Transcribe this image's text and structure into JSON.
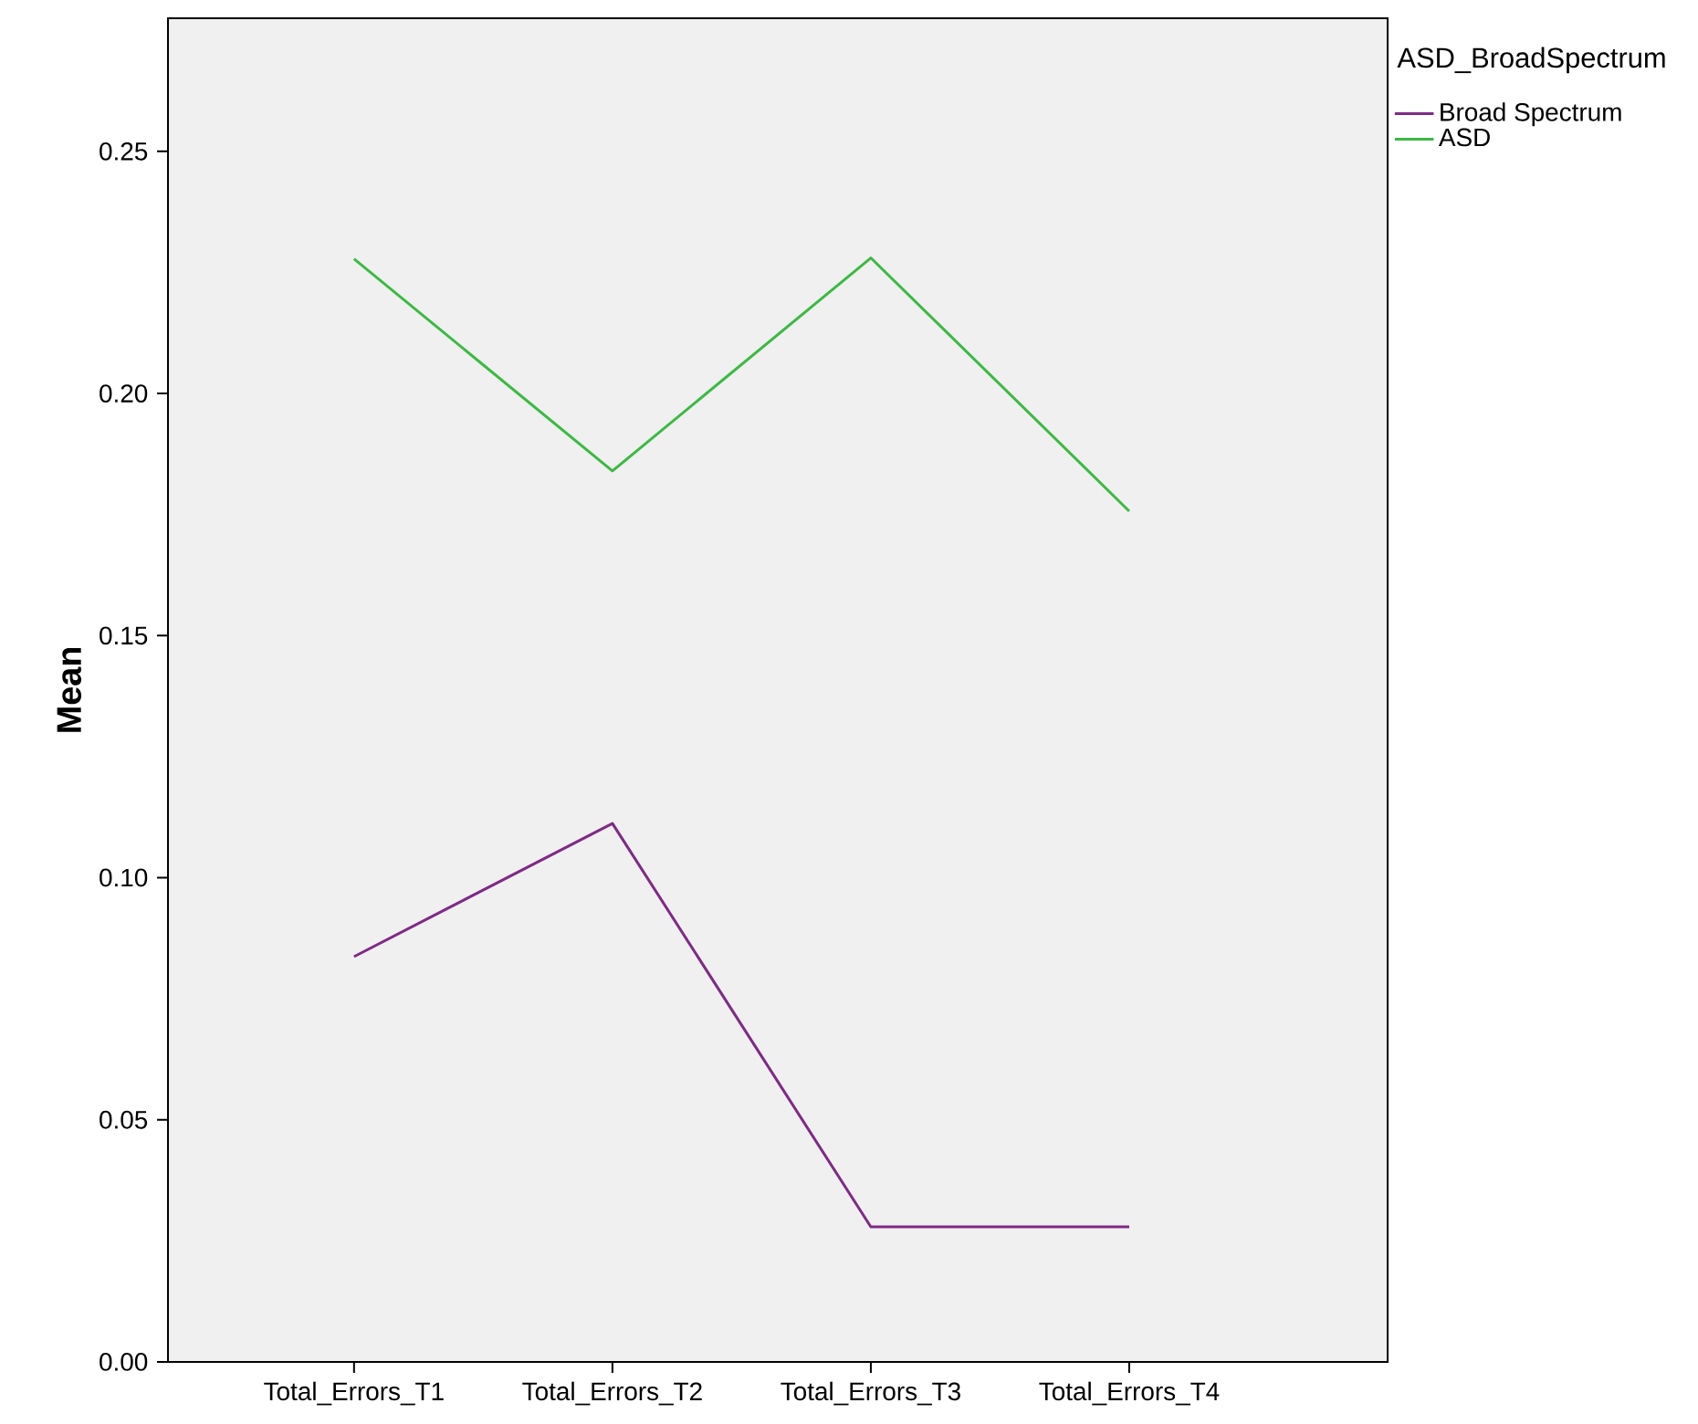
{
  "chart_data": {
    "type": "line",
    "ylabel": "Mean",
    "legend_title": "ASD_BroadSpectrum",
    "categories": [
      "Total_Errors_T1",
      "Total_Errors_T2",
      "Total_Errors_T3",
      "Total_Errors_T4"
    ],
    "series": [
      {
        "name": "Broad Spectrum",
        "color": "#7f2a85",
        "values": [
          0.0837,
          0.1112,
          0.0279,
          0.0279
        ]
      },
      {
        "name": "ASD",
        "color": "#3cb944",
        "values": [
          0.2278,
          0.184,
          0.228,
          0.1757
        ]
      }
    ],
    "ylim": [
      0,
      0.2775
    ],
    "yticks": [
      {
        "value": 0,
        "label": "0.00"
      },
      {
        "value": 0.05,
        "label": "0.05"
      },
      {
        "value": 0.1,
        "label": "0.10"
      },
      {
        "value": 0.15,
        "label": "0.15"
      },
      {
        "value": 0.2,
        "label": "0.20"
      },
      {
        "value": 0.25,
        "label": "0.25"
      }
    ],
    "grid": false,
    "legend": "right",
    "marker": "none",
    "line_style": "solid"
  }
}
